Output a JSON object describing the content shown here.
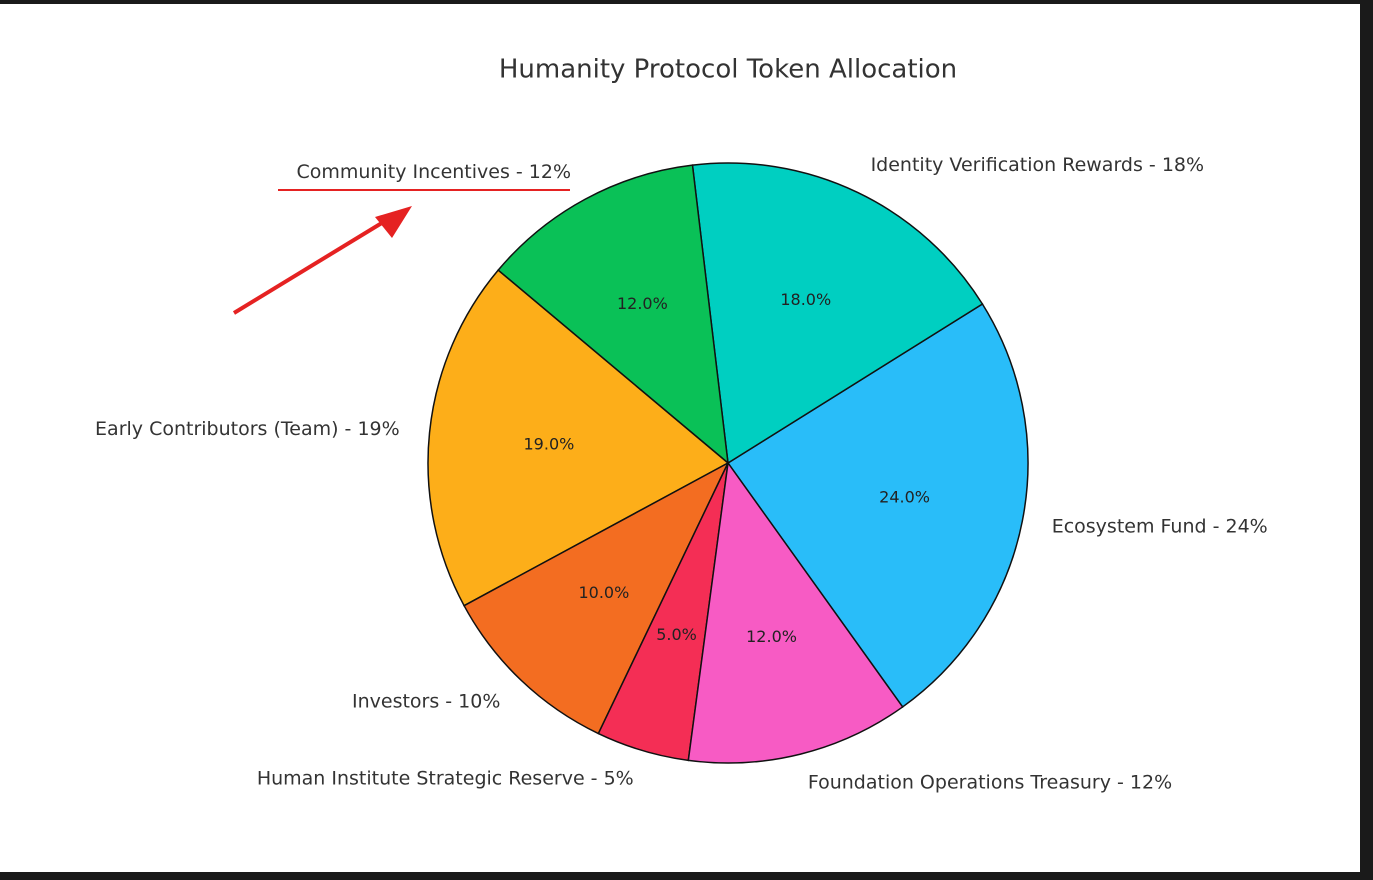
{
  "chart_data": {
    "type": "pie",
    "title": "Humanity Protocol Token Allocation",
    "categories": [
      "Ecosystem Fund - 24%",
      "Identity Verification Rewards - 18%",
      "Community Incentives - 12%",
      "Early Contributors (Team) - 19%",
      "Investors - 10%",
      "Human Institute Strategic Reserve - 5%",
      "Foundation Operations Treasury - 12%"
    ],
    "values": [
      24,
      18,
      12,
      19,
      10,
      5,
      12
    ],
    "value_labels": [
      "24.0%",
      "18.0%",
      "12.0%",
      "19.0%",
      "10.0%",
      "5.0%",
      "12.0%"
    ],
    "colors": [
      "#29bdf9",
      "#00cfc1",
      "#0ac157",
      "#fdae19",
      "#f36d21",
      "#f42e55",
      "#f75bc4"
    ]
  }
}
